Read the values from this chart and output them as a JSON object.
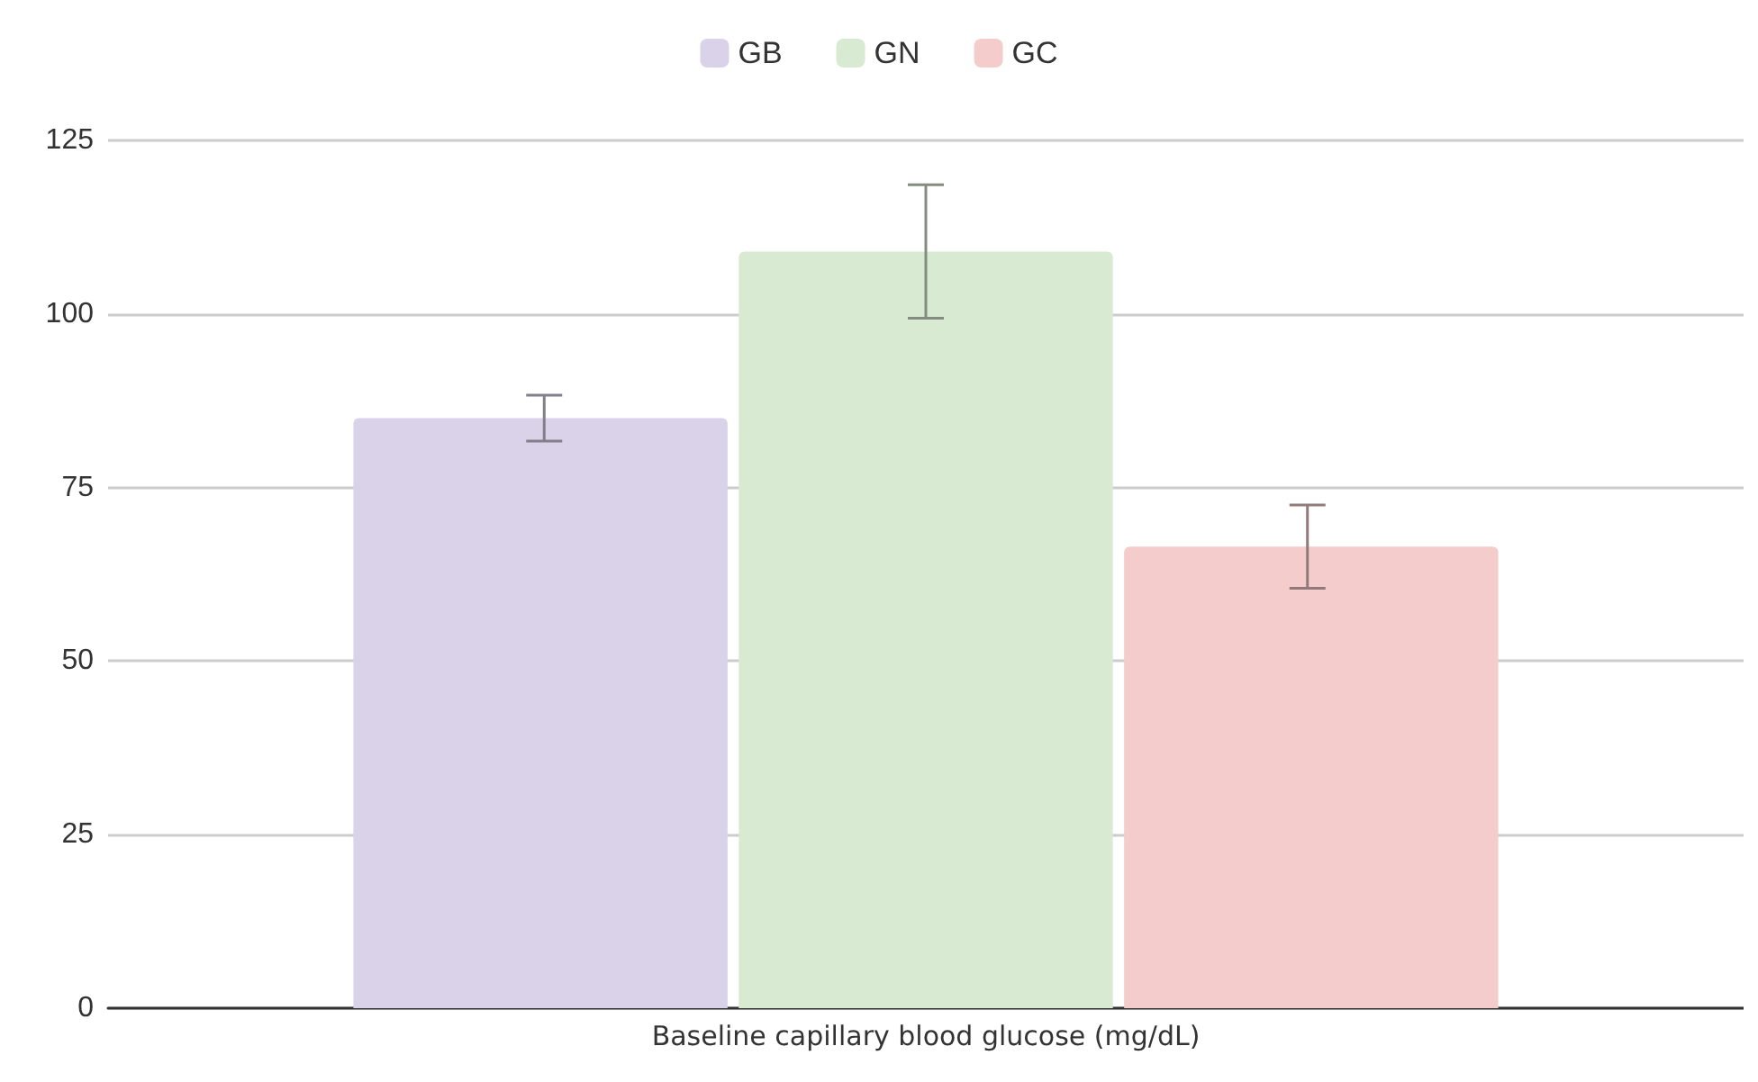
{
  "chart_data": {
    "type": "bar",
    "categories": [
      "Baseline capillary blood glucose (mg/dL)"
    ],
    "series": [
      {
        "name": "GB",
        "color": "#d9d2e9",
        "values": [
          85
        ],
        "errors": [
          3.3
        ]
      },
      {
        "name": "GN",
        "color": "#d9ead3",
        "values": [
          109
        ],
        "errors": [
          9.6
        ]
      },
      {
        "name": "GC",
        "color": "#f4cccc",
        "values": [
          66.5
        ],
        "errors": [
          6
        ]
      }
    ],
    "ylim": [
      0,
      125
    ],
    "yticks": [
      0,
      25,
      50,
      75,
      100,
      125
    ],
    "grid": "y",
    "legend": "top"
  }
}
